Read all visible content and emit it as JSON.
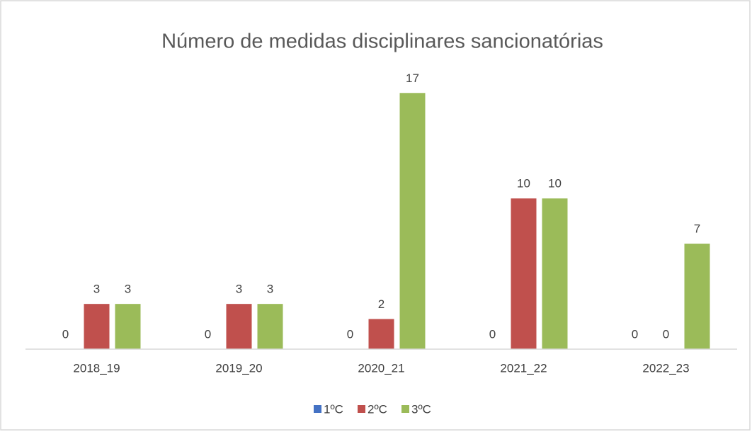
{
  "chart_data": {
    "type": "bar",
    "title": "Número de medidas disciplinares sancionatórias",
    "categories": [
      "2018_19",
      "2019_20",
      "2020_21",
      "2021_22",
      "2022_23"
    ],
    "series": [
      {
        "name": "1ºC",
        "color": "#4472c4",
        "values": [
          0,
          0,
          0,
          0,
          0
        ]
      },
      {
        "name": "2ºC",
        "color": "#c0504d",
        "values": [
          3,
          3,
          2,
          10,
          0
        ]
      },
      {
        "name": "3ºC",
        "color": "#9bbb59",
        "values": [
          3,
          3,
          17,
          10,
          7
        ]
      }
    ],
    "ylim": [
      0,
      18
    ],
    "legend": "bottom"
  }
}
